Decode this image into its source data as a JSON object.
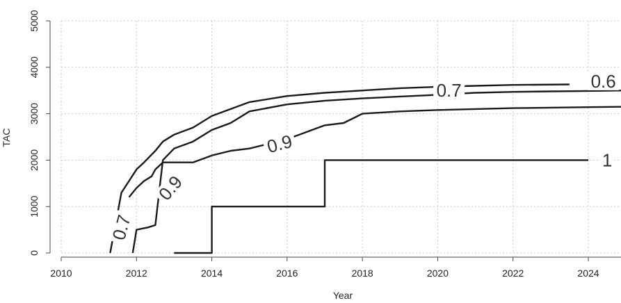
{
  "chart_data": {
    "type": "line",
    "title": "",
    "xlabel": "Year",
    "ylabel": "TAC",
    "xlim": [
      2010,
      2025
    ],
    "ylim": [
      0,
      5000
    ],
    "x_ticks": [
      2010,
      2012,
      2014,
      2016,
      2018,
      2020,
      2022,
      2024
    ],
    "y_ticks": [
      0,
      1000,
      2000,
      3000,
      4000,
      5000
    ],
    "grid": true,
    "legend": "none",
    "series": [
      {
        "level": "0.6",
        "points": [
          [
            2011.3,
            0
          ],
          [
            2011.6,
            1300
          ],
          [
            2011.8,
            1550
          ],
          [
            2012.0,
            1800
          ],
          [
            2012.2,
            1950
          ],
          [
            2012.5,
            2200
          ],
          [
            2012.7,
            2400
          ],
          [
            2013.0,
            2550
          ],
          [
            2013.5,
            2700
          ],
          [
            2014.0,
            2950
          ],
          [
            2014.5,
            3100
          ],
          [
            2015.0,
            3250
          ],
          [
            2016.0,
            3380
          ],
          [
            2017.0,
            3450
          ],
          [
            2018.0,
            3500
          ],
          [
            2019.0,
            3550
          ],
          [
            2020.0,
            3580
          ],
          [
            2021.0,
            3600
          ],
          [
            2022.0,
            3620
          ],
          [
            2023.5,
            3630
          ]
        ]
      },
      {
        "level": "0.7",
        "points": [
          [
            2011.9,
            0
          ],
          [
            2012.0,
            500
          ],
          [
            2012.3,
            550
          ],
          [
            2012.5,
            600
          ],
          [
            2012.7,
            2000
          ],
          [
            2013.0,
            2250
          ],
          [
            2013.5,
            2400
          ],
          [
            2014.0,
            2650
          ],
          [
            2014.5,
            2800
          ],
          [
            2015.0,
            3050
          ],
          [
            2016.0,
            3200
          ],
          [
            2017.0,
            3280
          ],
          [
            2018.0,
            3330
          ],
          [
            2019.0,
            3370
          ],
          [
            2019.8,
            3400
          ],
          [
            2021.0,
            3450
          ],
          [
            2022.0,
            3470
          ],
          [
            2023.0,
            3480
          ],
          [
            2024.0,
            3490
          ],
          [
            2025.0,
            3500
          ]
        ]
      },
      {
        "level": "0.9",
        "points": [
          [
            2011.8,
            1200
          ],
          [
            2012.0,
            1400
          ],
          [
            2012.2,
            1550
          ],
          [
            2012.4,
            1650
          ],
          [
            2012.5,
            1800
          ],
          [
            2012.7,
            1950
          ],
          [
            2013.5,
            1950
          ],
          [
            2014.0,
            2100
          ],
          [
            2014.5,
            2200
          ],
          [
            2015.0,
            2250
          ],
          [
            2016.0,
            2450
          ],
          [
            2017.0,
            2750
          ],
          [
            2017.5,
            2800
          ],
          [
            2018.0,
            3000
          ],
          [
            2019.0,
            3050
          ],
          [
            2020.0,
            3080
          ],
          [
            2021.0,
            3100
          ],
          [
            2022.0,
            3120
          ],
          [
            2023.0,
            3130
          ],
          [
            2024.0,
            3140
          ],
          [
            2025.0,
            3150
          ]
        ]
      },
      {
        "level": "1",
        "points": [
          [
            2013.0,
            0
          ],
          [
            2014.0,
            0
          ],
          [
            2014.0,
            1000
          ],
          [
            2017.0,
            1000
          ],
          [
            2017.0,
            2000
          ],
          [
            2024.0,
            2000
          ]
        ]
      }
    ],
    "contour_labels": [
      {
        "text": "0.6",
        "x": 2024.4,
        "y": 3700
      },
      {
        "text": "0.7",
        "x": 2020.3,
        "y": 3500
      },
      {
        "text": "0.7",
        "x": 2011.6,
        "y": 550
      },
      {
        "text": "0.9",
        "x": 2015.8,
        "y": 2350
      },
      {
        "text": "0.9",
        "x": 2012.9,
        "y": 1400
      },
      {
        "text": "1",
        "x": 2024.5,
        "y": 2000
      }
    ]
  }
}
